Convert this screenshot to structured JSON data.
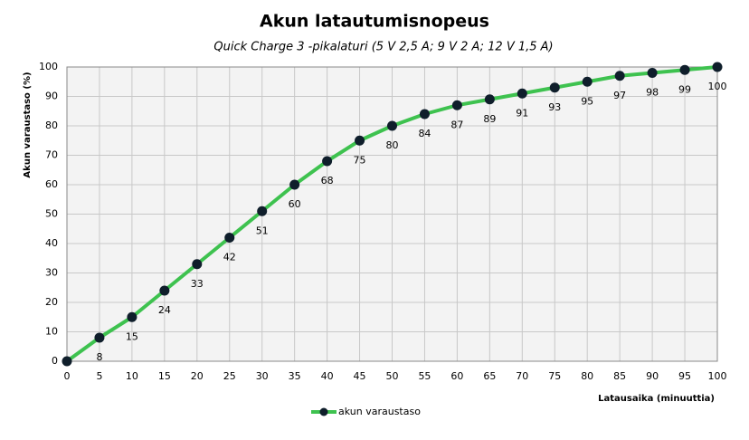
{
  "chart_data": {
    "type": "line",
    "title": "Akun latautumisnopeus",
    "subtitle": "Quick Charge 3 -pikalaturi (5 V 2,5 A; 9 V 2 A; 12 V 1,5 A)",
    "x_label": "Latausaika  (minuuttia)",
    "y_label": "Akun varaustaso  (%)",
    "x": [
      0,
      5,
      10,
      15,
      20,
      25,
      30,
      35,
      40,
      45,
      50,
      55,
      60,
      65,
      70,
      75,
      80,
      85,
      90,
      95,
      100
    ],
    "series": [
      {
        "name": "akun varaustaso",
        "color": "#3ec24f",
        "marker_color": "#0f1e2b",
        "values": [
          0,
          8,
          15,
          24,
          33,
          42,
          51,
          60,
          68,
          75,
          80,
          84,
          87,
          89,
          91,
          93,
          95,
          97,
          98,
          99,
          100
        ]
      }
    ],
    "xlim": [
      0,
      100
    ],
    "xticks": [
      0,
      5,
      10,
      15,
      20,
      25,
      30,
      35,
      40,
      45,
      50,
      55,
      60,
      65,
      70,
      75,
      80,
      85,
      90,
      95,
      100
    ],
    "ylim": [
      0,
      100
    ],
    "yticks": [
      0,
      10,
      20,
      30,
      40,
      50,
      60,
      70,
      80,
      90,
      100
    ],
    "grid": true,
    "legend": "bottom"
  }
}
